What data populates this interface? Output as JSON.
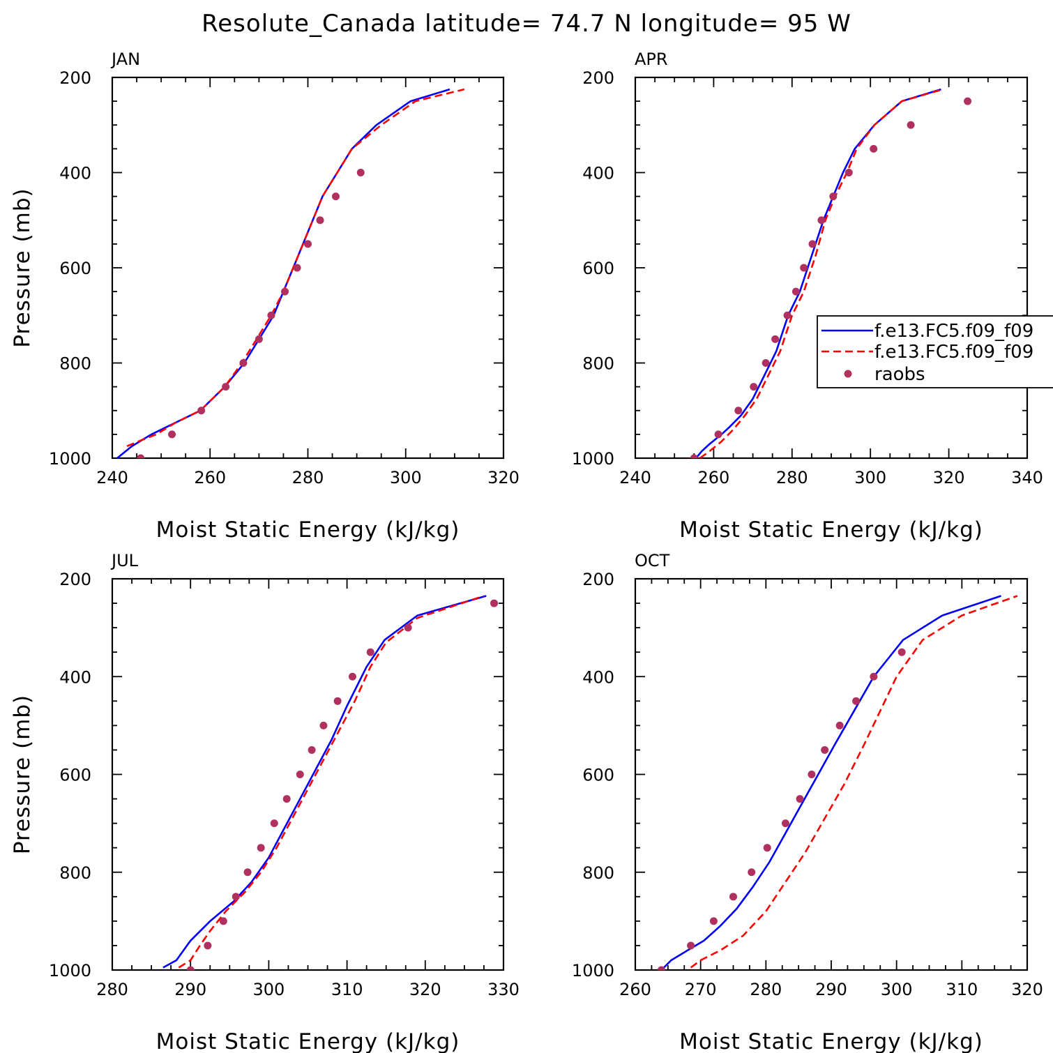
{
  "figure_title": "Resolute_Canada  latitude= 74.7 N longitude= 95 W",
  "colors": {
    "model1": "#0000ff",
    "model2": "#ff0000",
    "raobs": "#b03060"
  },
  "legend": {
    "model1": "f.e13.FC5.f09_f09",
    "model2": "f.e13.FC5.f09_f09",
    "raobs": "raobs"
  },
  "chart_data": [
    {
      "type": "line",
      "title": "JAN",
      "xlabel": "Moist Static Energy (kJ/kg)",
      "ylabel": "Pressure (mb)",
      "xlim": [
        240,
        320
      ],
      "ylim": [
        1000,
        200
      ],
      "xticks": [
        240,
        260,
        280,
        300,
        320
      ],
      "yticks": [
        200,
        400,
        600,
        800,
        1000
      ],
      "series": [
        {
          "name": "f.e13.FC5.f09_f09",
          "style": "solid",
          "x": [
            241,
            244,
            248,
            253,
            258,
            263,
            267,
            270,
            273,
            275,
            277,
            279,
            281,
            283,
            286,
            289,
            294,
            301,
            309
          ],
          "y": [
            1000,
            975,
            950,
            925,
            900,
            850,
            800,
            750,
            700,
            650,
            600,
            550,
            500,
            450,
            400,
            350,
            300,
            250,
            225
          ]
        },
        {
          "name": "f.e13.FC5.f09_f09",
          "style": "dashed",
          "x": [
            243,
            246,
            249,
            253,
            258,
            263,
            266.5,
            269.5,
            272.5,
            275,
            277,
            279,
            281,
            283,
            286,
            289,
            295,
            302,
            312
          ],
          "y": [
            975,
            962,
            950,
            925,
            900,
            850,
            800,
            750,
            700,
            650,
            600,
            550,
            500,
            450,
            400,
            350,
            300,
            250,
            225
          ]
        },
        {
          "name": "raobs",
          "style": "points",
          "x": [
            245.8,
            252.2,
            258.2,
            263.2,
            266.8,
            270,
            272.5,
            275.3,
            277.8,
            280,
            282.5,
            285.7,
            290.8
          ],
          "y": [
            1000,
            950,
            900,
            850,
            800,
            750,
            700,
            650,
            600,
            550,
            500,
            450,
            400
          ]
        }
      ]
    },
    {
      "type": "line",
      "title": "APR",
      "xlabel": "Moist Static Energy (kJ/kg)",
      "ylabel": "",
      "xlim": [
        240,
        340
      ],
      "ylim": [
        1000,
        200
      ],
      "xticks": [
        240,
        260,
        280,
        300,
        320,
        340
      ],
      "yticks": [
        200,
        400,
        600,
        800,
        1000
      ],
      "series": [
        {
          "name": "f.e13.FC5.f09_f09",
          "style": "solid",
          "x": [
            255.5,
            257,
            259,
            262,
            264,
            267,
            270,
            273,
            276,
            279,
            282,
            285,
            288,
            290.5,
            293,
            296,
            301,
            308,
            318
          ],
          "y": [
            1000,
            985,
            970,
            950,
            935,
            910,
            875,
            825,
            775,
            700,
            650,
            575,
            500,
            450,
            400,
            350,
            300,
            250,
            225
          ]
        },
        {
          "name": "f.e13.FC5.f09_f09",
          "style": "dashed",
          "x": [
            256.5,
            259,
            262,
            265,
            268,
            271,
            274,
            277,
            280,
            283,
            286,
            288.5,
            291,
            294,
            296.5,
            301,
            308,
            318.5
          ],
          "y": [
            1000,
            985,
            965,
            940,
            910,
            875,
            825,
            775,
            700,
            650,
            575,
            500,
            450,
            400,
            350,
            300,
            250,
            225
          ]
        },
        {
          "name": "raobs",
          "style": "points",
          "x": [
            255,
            261.2,
            266.3,
            270.2,
            273.3,
            275.7,
            278.8,
            281,
            283,
            285.2,
            287.5,
            290.5,
            294.5,
            300.8,
            310.3,
            324.8
          ],
          "y": [
            1000,
            950,
            900,
            850,
            800,
            750,
            700,
            650,
            600,
            550,
            500,
            450,
            400,
            350,
            300,
            250
          ]
        }
      ]
    },
    {
      "type": "line",
      "title": "JUL",
      "xlabel": "Moist Static Energy (kJ/kg)",
      "ylabel": "Pressure (mb)",
      "xlim": [
        280,
        330
      ],
      "ylim": [
        1000,
        200
      ],
      "xticks": [
        280,
        290,
        300,
        310,
        320,
        330
      ],
      "yticks": [
        200,
        400,
        600,
        800,
        1000
      ],
      "series": [
        {
          "name": "f.e13.FC5.f09_f09",
          "style": "solid",
          "x": [
            286.5,
            288.2,
            290,
            292.5,
            295.5,
            297.8,
            300,
            302,
            304,
            306,
            308,
            310,
            312.5,
            314.8,
            319,
            327.8
          ],
          "y": [
            995,
            980,
            940,
            900,
            860,
            820,
            770,
            710,
            650,
            590,
            530,
            460,
            380,
            325,
            275,
            235
          ]
        },
        {
          "name": "f.e13.FC5.f09_f09",
          "style": "dashed",
          "x": [
            288.5,
            290,
            291.2,
            292.5,
            294.5,
            297,
            299,
            301,
            303,
            305,
            307,
            309,
            311,
            313,
            315,
            319,
            327.5
          ],
          "y": [
            995,
            980,
            950,
            920,
            880,
            840,
            800,
            750,
            690,
            630,
            570,
            510,
            450,
            380,
            330,
            280,
            235
          ]
        },
        {
          "name": "raobs",
          "style": "points",
          "x": [
            290,
            292.2,
            294.2,
            295.8,
            297.3,
            299,
            300.7,
            302.3,
            304,
            305.5,
            307,
            308.8,
            310.7,
            313,
            317.8,
            328.8
          ],
          "y": [
            1000,
            950,
            900,
            850,
            800,
            750,
            700,
            650,
            600,
            550,
            500,
            450,
            400,
            350,
            300,
            250
          ]
        }
      ]
    },
    {
      "type": "line",
      "title": "OCT",
      "xlabel": "Moist Static Energy (kJ/kg)",
      "ylabel": "",
      "xlim": [
        260,
        320
      ],
      "ylim": [
        1000,
        200
      ],
      "xticks": [
        260,
        270,
        280,
        290,
        300,
        310,
        320
      ],
      "yticks": [
        200,
        400,
        600,
        800,
        1000
      ],
      "series": [
        {
          "name": "f.e13.FC5.f09_f09",
          "style": "solid",
          "x": [
            264,
            265.5,
            268,
            270.5,
            273,
            275.5,
            278,
            280.5,
            283,
            285.5,
            288,
            290.5,
            293.5,
            296.5,
            301,
            307,
            316
          ],
          "y": [
            1000,
            980,
            960,
            940,
            910,
            875,
            830,
            780,
            720,
            660,
            600,
            540,
            470,
            400,
            325,
            275,
            235
          ]
        },
        {
          "name": "f.e13.FC5.f09_f09",
          "style": "dashed",
          "x": [
            268.5,
            270,
            273,
            276.5,
            280,
            283,
            286,
            289,
            292,
            295,
            297.5,
            300,
            304,
            310,
            318.5
          ],
          "y": [
            995,
            980,
            960,
            930,
            880,
            820,
            760,
            690,
            620,
            540,
            470,
            400,
            325,
            275,
            235
          ]
        },
        {
          "name": "raobs",
          "style": "points",
          "x": [
            264,
            268.5,
            272,
            275,
            277.8,
            280.2,
            283,
            285.2,
            287,
            289,
            291.3,
            293.8,
            296.5,
            300.8
          ],
          "y": [
            1000,
            950,
            900,
            850,
            800,
            750,
            700,
            650,
            600,
            550,
            500,
            450,
            400,
            350
          ]
        }
      ]
    }
  ]
}
